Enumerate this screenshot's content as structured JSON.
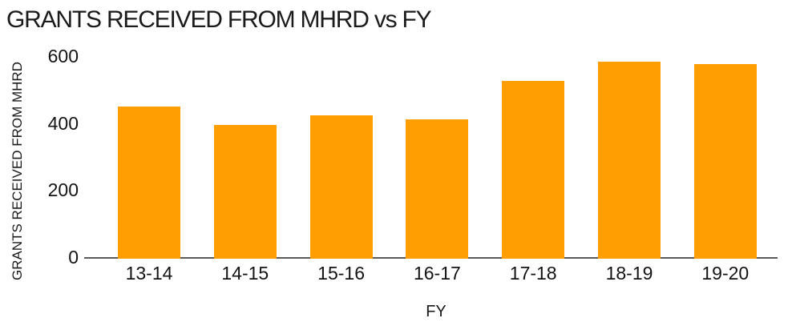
{
  "title": "GRANTS RECEIVED FROM MHRD vs FY",
  "chart_data": {
    "type": "bar",
    "title": "GRANTS RECEIVED FROM MHRD vs FY",
    "xlabel": "FY",
    "ylabel": "GRANTS RECEIVED FROM MHRD",
    "categories": [
      "13-14",
      "14-15",
      "15-16",
      "16-17",
      "17-18",
      "18-19",
      "19-20"
    ],
    "values": [
      450,
      394,
      423,
      411,
      527,
      583,
      577
    ],
    "yticks": [
      0,
      200,
      400,
      600
    ],
    "ylim": [
      0,
      600
    ],
    "grid": false,
    "legend": false,
    "bar_color": "#FF9E00",
    "axis_line_color": "#5A5A5A",
    "text_color": "#1A1A1A"
  }
}
